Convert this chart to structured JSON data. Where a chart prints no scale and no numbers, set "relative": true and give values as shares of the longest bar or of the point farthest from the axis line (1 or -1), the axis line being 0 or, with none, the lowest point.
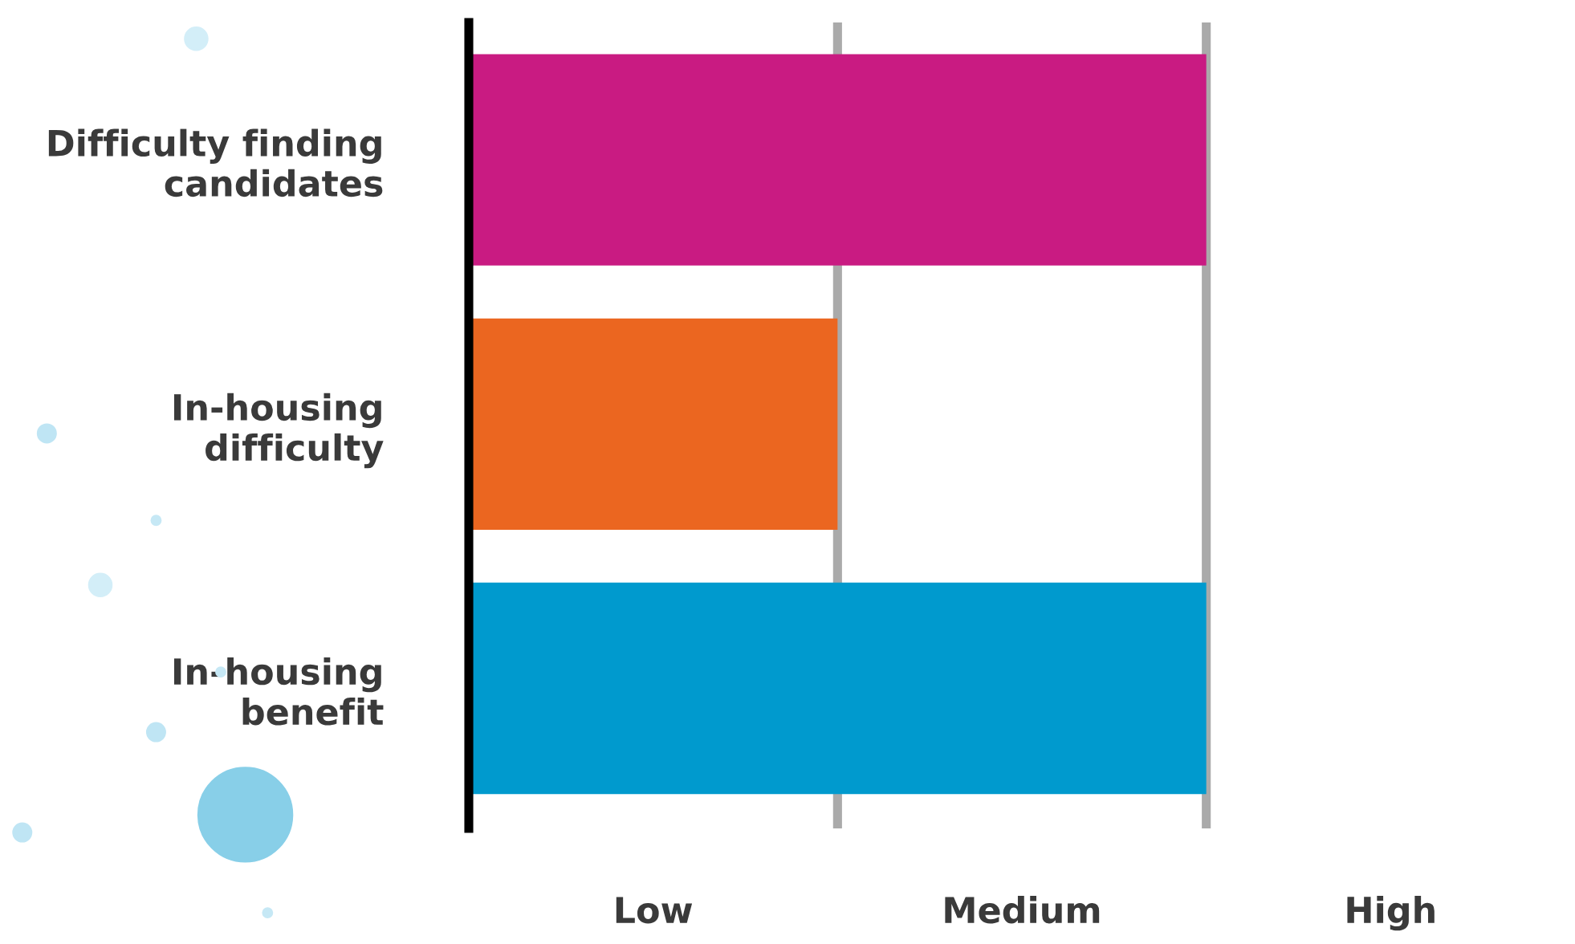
{
  "chart_data": {
    "type": "bar",
    "orientation": "horizontal",
    "relative": true,
    "categories": [
      "Difficulty finding\ncandidates",
      "In-housing\ndifficulty",
      "In-housing\nbenefit"
    ],
    "values": [
      1,
      0.5,
      1
    ],
    "colors": [
      "#c91b82",
      "#eb6620",
      "#009ace"
    ],
    "ref_lines": [
      {
        "axis": "x",
        "value": 0.5,
        "color": "#aaaaaa"
      },
      {
        "axis": "x",
        "value": 1,
        "color": "#aaaaaa"
      }
    ],
    "annotations": [
      "Low",
      "Medium",
      "High"
    ]
  }
}
